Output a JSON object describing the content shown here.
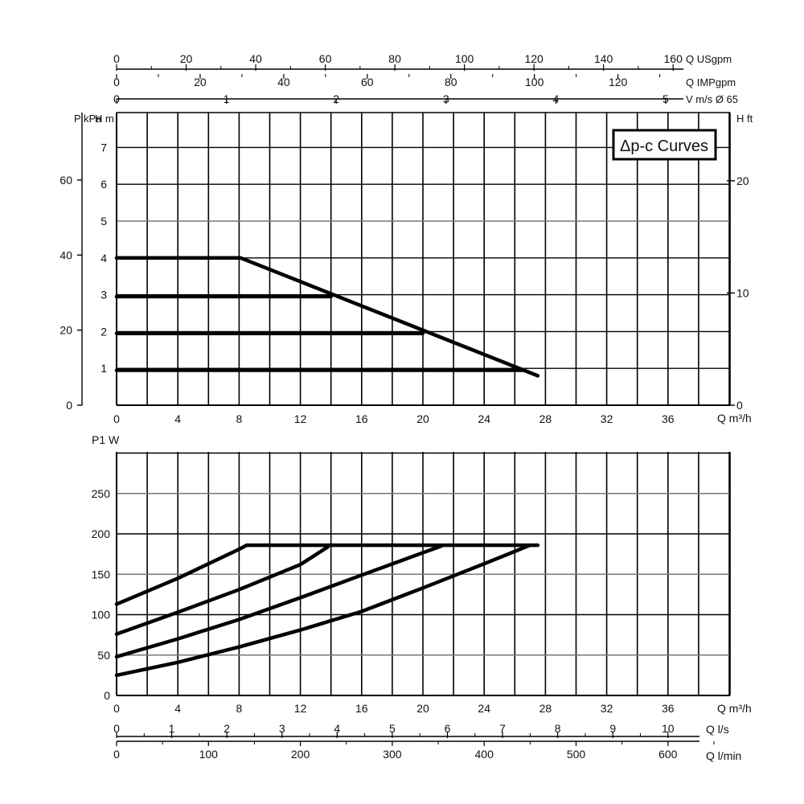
{
  "chart_data": [
    {
      "type": "line",
      "title": "Δp-c Curves",
      "xlabel": "Q m³/h",
      "ylabel_left_outer": "P kPa",
      "ylabel_left_inner": "H m",
      "ylabel_right": "H ft",
      "xlim": [
        0,
        40
      ],
      "ylim": [
        0,
        8
      ],
      "x_ticks": [
        "0",
        "4",
        "8",
        "12",
        "16",
        "20",
        "24",
        "28",
        "32",
        "36"
      ],
      "y_ticks_m": [
        "1",
        "2",
        "3",
        "4",
        "5",
        "6",
        "7"
      ],
      "y_ticks_kpa": [
        "0",
        "20",
        "40",
        "60"
      ],
      "y_ticks_ft": [
        "0",
        "10",
        "20"
      ],
      "top_axes": [
        {
          "label": "Q USgpm",
          "ticks": [
            "0",
            "20",
            "40",
            "60",
            "80",
            "100",
            "120",
            "140",
            "160"
          ]
        },
        {
          "label": "Q IMPgpm",
          "ticks": [
            "0",
            "20",
            "40",
            "60",
            "80",
            "100",
            "120"
          ]
        },
        {
          "label": "V m/s Ø 65",
          "ticks": [
            "0",
            "1",
            "2",
            "3",
            "4",
            "5"
          ]
        }
      ],
      "series": [
        {
          "values": [
            [
              0,
              4
            ],
            [
              8.1,
              4
            ],
            [
              27.5,
              0.8
            ]
          ]
        },
        {
          "values": [
            [
              0,
              2.95
            ],
            [
              14,
              2.95
            ]
          ]
        },
        {
          "values": [
            [
              0,
              1.95
            ],
            [
              20,
              1.95
            ]
          ]
        },
        {
          "values": [
            [
              0,
              0.95
            ],
            [
              26.5,
              0.95
            ]
          ]
        }
      ]
    },
    {
      "type": "line",
      "xlabel": "Q m³/h",
      "ylabel": "P1 W",
      "xlim": [
        0,
        40
      ],
      "ylim": [
        0,
        300
      ],
      "x_ticks": [
        "0",
        "4",
        "8",
        "12",
        "16",
        "20",
        "24",
        "28",
        "32",
        "36"
      ],
      "y_ticks": [
        "0",
        "50",
        "100",
        "150",
        "200",
        "250"
      ],
      "bottom_axes": [
        {
          "label": "Q l/s",
          "ticks": [
            "0",
            "1",
            "2",
            "3",
            "4",
            "5",
            "6",
            "7",
            "8",
            "9",
            "10"
          ]
        },
        {
          "label": "Q l/min",
          "ticks": [
            "0",
            "100",
            "200",
            "300",
            "400",
            "500",
            "600"
          ]
        }
      ],
      "series": [
        {
          "values": [
            [
              0,
              113
            ],
            [
              4,
              145
            ],
            [
              8,
              181
            ],
            [
              8.5,
              186
            ],
            [
              13.8,
              186
            ],
            [
              21.5,
              186
            ],
            [
              27.5,
              186
            ]
          ]
        },
        {
          "values": [
            [
              0,
              76
            ],
            [
              4,
              103
            ],
            [
              8,
              131
            ],
            [
              12,
              162
            ],
            [
              13.8,
              184
            ]
          ]
        },
        {
          "values": [
            [
              0,
              48
            ],
            [
              4,
              70
            ],
            [
              8,
              94
            ],
            [
              12,
              121
            ],
            [
              16,
              149
            ],
            [
              21.2,
              185
            ]
          ]
        },
        {
          "values": [
            [
              0,
              25
            ],
            [
              4,
              41
            ],
            [
              8,
              60
            ],
            [
              12,
              81
            ],
            [
              16,
              104
            ],
            [
              20,
              133
            ],
            [
              24,
              163
            ],
            [
              27,
              186
            ]
          ]
        }
      ]
    }
  ]
}
